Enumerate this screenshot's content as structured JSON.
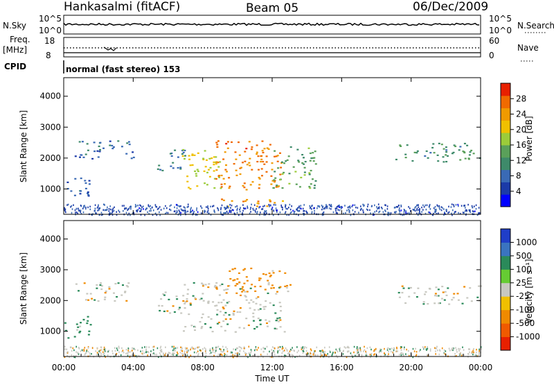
{
  "header": {
    "station": "Hankasalmi (fitACF)",
    "beam": "Beam 05",
    "date": "06/Dec/2009"
  },
  "top_panels": {
    "nsky_label": "N.Sky",
    "nsky_ticks": [
      "10^5",
      "10^0"
    ],
    "nsearch_label": "N.Search",
    "nsearch_ticks": [
      "10^5",
      "10^0"
    ],
    "freq_label": "Freq.",
    "freq_unit": "[MHz]",
    "freq_ticks": [
      "18",
      "8"
    ],
    "nave_label": "Nave",
    "nave_ticks": [
      "60",
      "0"
    ],
    "cpid_label": "CPID",
    "cpid_value": "normal (fast stereo) 153"
  },
  "chart_data": [
    {
      "type": "heatmap",
      "name": "power",
      "ylabel": "Slant Range [km]",
      "y_ticks": [
        "4000",
        "3000",
        "2000",
        "1000"
      ],
      "ylim": [
        180,
        4600
      ],
      "colorbar_label": "Power [dB]",
      "colorbar_ticks": [
        "28",
        "24",
        "20",
        "16",
        "12",
        "8",
        "4"
      ],
      "colorbar_range": [
        0,
        32
      ],
      "colors": [
        "#0000ff",
        "#1b3aa8",
        "#3a6ab5",
        "#3e8a6a",
        "#5aa05a",
        "#9ccc3a",
        "#f0c000",
        "#f09a00",
        "#f06a00",
        "#e82000"
      ],
      "echo_regions": [
        {
          "t0": 0.5,
          "t1": 4.0,
          "r0": 2000,
          "r1": 2600,
          "level": 8
        },
        {
          "t0": 0.0,
          "t1": 1.5,
          "r0": 800,
          "r1": 1500,
          "level": 8
        },
        {
          "t0": 5.3,
          "t1": 7.0,
          "r0": 1600,
          "r1": 2300,
          "level": 10
        },
        {
          "t0": 6.8,
          "t1": 9.0,
          "r0": 1000,
          "r1": 2300,
          "level": 20
        },
        {
          "t0": 8.7,
          "t1": 12.5,
          "r0": 1000,
          "r1": 2600,
          "level": 26
        },
        {
          "t0": 12.0,
          "t1": 14.5,
          "r0": 1000,
          "r1": 2400,
          "level": 14
        },
        {
          "t0": 9.0,
          "t1": 13.0,
          "r0": 450,
          "r1": 700,
          "level": 24
        },
        {
          "t0": 19.0,
          "t1": 24.0,
          "r0": 1900,
          "r1": 2500,
          "level": 12
        }
      ]
    },
    {
      "type": "heatmap",
      "name": "velocity",
      "ylabel": "Slant Range [km]",
      "y_ticks": [
        "4000",
        "3000",
        "2000",
        "1000"
      ],
      "ylim": [
        180,
        4600
      ],
      "colorbar_label": "Velocity [m s⁻¹]",
      "colorbar_ticks": [
        "1000",
        "500",
        "100",
        "25",
        "-25",
        "-100",
        "-500",
        "-1000"
      ],
      "colors": [
        "#1f3ec8",
        "#3a74c0",
        "#2a8a5a",
        "#66cc33",
        "#c8c8c0",
        "#f0c000",
        "#f08a00",
        "#f05a00",
        "#e82000"
      ],
      "echo_regions": [
        {
          "t0": 0.5,
          "t1": 4.0,
          "r0": 2000,
          "r1": 2600,
          "level": 0
        },
        {
          "t0": 0.0,
          "t1": 1.5,
          "r0": 800,
          "r1": 1500,
          "level": 200
        },
        {
          "t0": 5.3,
          "t1": 7.0,
          "r0": 1600,
          "r1": 2300,
          "level": 0
        },
        {
          "t0": 6.8,
          "t1": 12.8,
          "r0": 1000,
          "r1": 2600,
          "level": 0
        },
        {
          "t0": 9.5,
          "t1": 13.0,
          "r0": 2300,
          "r1": 3100,
          "level": -300
        },
        {
          "t0": 19.0,
          "t1": 24.0,
          "r0": 1900,
          "r1": 2500,
          "level": 0
        }
      ]
    }
  ],
  "x_axis": {
    "label": "Time UT",
    "ticks": [
      "00:00",
      "04:00",
      "08:00",
      "12:00",
      "16:00",
      "20:00",
      "00:00"
    ],
    "range_hours": [
      0,
      24
    ]
  }
}
